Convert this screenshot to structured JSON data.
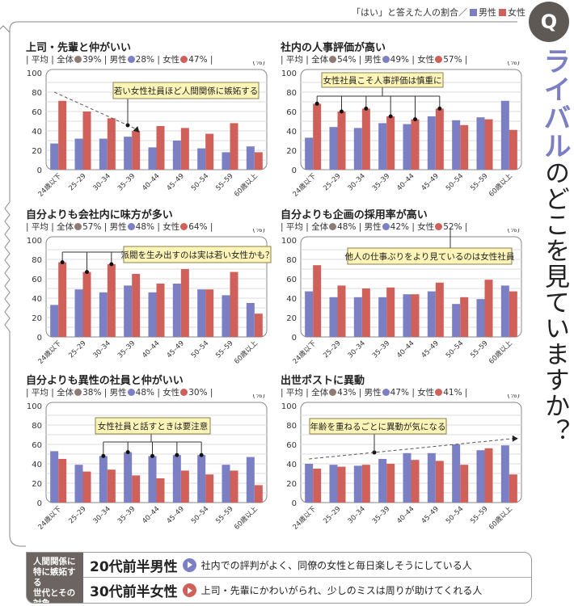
{
  "header": {
    "legend_caption": "「はい」と答えた人の割合／",
    "legend_male": "男性",
    "legend_female": "女性",
    "q_badge": "Q",
    "title_accent": "ライバル",
    "title_rest": "のどこを見ていますか？"
  },
  "colors": {
    "male": "#7b7fc4",
    "female": "#d0605a",
    "overall": "#8e7b76",
    "callout_bg": "#fdf5b8"
  },
  "labels": {
    "avg": "平均",
    "overall": "全体",
    "male": "男性",
    "female": "女性",
    "unit": "(%)"
  },
  "chart_data": [
    {
      "type": "bar",
      "title": "上司・先輩と仲がいい",
      "avg": {
        "overall": "39%",
        "male": "28%",
        "female": "47%"
      },
      "categories": [
        "24歳以下",
        "25–29",
        "30–34",
        "35–39",
        "40–44",
        "45–49",
        "50–54",
        "55–59",
        "60歳以上"
      ],
      "series": [
        {
          "name": "男性",
          "values": [
            27,
            32,
            32,
            34,
            23,
            30,
            22,
            18,
            24
          ]
        },
        {
          "name": "女性",
          "values": [
            71,
            60,
            53,
            40,
            45,
            43,
            37,
            48,
            18
          ]
        }
      ],
      "ylim": [
        0,
        100
      ],
      "yticks": [
        0,
        20,
        40,
        60,
        80,
        100
      ],
      "grid": true,
      "callout": "若い女性社員ほど人間関係に嫉妬する"
    },
    {
      "type": "bar",
      "title": "社内の人事評価が高い",
      "avg": {
        "overall": "54%",
        "male": "49%",
        "female": "57%"
      },
      "categories": [
        "24歳以下",
        "25–29",
        "30–34",
        "35–39",
        "40–44",
        "45–49",
        "50–54",
        "55–59",
        "60歳以上"
      ],
      "series": [
        {
          "name": "男性",
          "values": [
            33,
            44,
            43,
            48,
            47,
            55,
            51,
            54,
            71
          ]
        },
        {
          "name": "女性",
          "values": [
            68,
            60,
            63,
            55,
            52,
            63,
            46,
            52,
            41
          ]
        }
      ],
      "ylim": [
        0,
        100
      ],
      "yticks": [
        0,
        20,
        40,
        60,
        80,
        100
      ],
      "grid": true,
      "callout": "女性社員こそ人事評価は慎重に"
    },
    {
      "type": "bar",
      "title": "自分よりも会社内に味方が多い",
      "avg": {
        "overall": "57%",
        "male": "48%",
        "female": "64%"
      },
      "categories": [
        "24歳以下",
        "25–29",
        "30–34",
        "35–39",
        "40–44",
        "45–49",
        "50–54",
        "55–59",
        "60歳以上"
      ],
      "series": [
        {
          "name": "男性",
          "values": [
            33,
            49,
            46,
            53,
            46,
            55,
            49,
            43,
            35
          ]
        },
        {
          "name": "女性",
          "values": [
            77,
            67,
            75,
            65,
            55,
            70,
            49,
            67,
            24
          ]
        }
      ],
      "ylim": [
        0,
        100
      ],
      "yticks": [
        0,
        20,
        40,
        60,
        80,
        100
      ],
      "grid": true,
      "callout": "派閥を生み出すのは実は若い女性かも？"
    },
    {
      "type": "bar",
      "title": "自分よりも企画の採用率が高い",
      "avg": {
        "overall": "48%",
        "male": "42%",
        "female": "52%"
      },
      "categories": [
        "24歳以下",
        "25–29",
        "30–34",
        "35–39",
        "40–44",
        "45–49",
        "50–54",
        "55–59",
        "60歳以上"
      ],
      "series": [
        {
          "name": "男性",
          "values": [
            47,
            41,
            41,
            41,
            44,
            47,
            34,
            39,
            53
          ]
        },
        {
          "name": "女性",
          "values": [
            74,
            53,
            50,
            51,
            44,
            56,
            41,
            59,
            47
          ]
        }
      ],
      "ylim": [
        0,
        100
      ],
      "yticks": [
        0,
        20,
        40,
        60,
        80,
        100
      ],
      "grid": true,
      "callout": "他人の仕事ぶりをより見ているのは女性社員"
    },
    {
      "type": "bar",
      "title": "自分よりも異性の社員と仲がいい",
      "avg": {
        "overall": "38%",
        "male": "48%",
        "female": "30%"
      },
      "categories": [
        "24歳以下",
        "25–29",
        "30–34",
        "35–39",
        "40–44",
        "45–49",
        "50–54",
        "55–59",
        "60歳以上"
      ],
      "series": [
        {
          "name": "男性",
          "values": [
            53,
            39,
            48,
            52,
            48,
            49,
            49,
            39,
            47
          ]
        },
        {
          "name": "女性",
          "values": [
            45,
            32,
            34,
            28,
            25,
            33,
            29,
            33,
            18
          ]
        }
      ],
      "ylim": [
        0,
        100
      ],
      "yticks": [
        0,
        20,
        40,
        60,
        80,
        100
      ],
      "grid": true,
      "callout": "女性社員と話すときは要注意"
    },
    {
      "type": "bar",
      "title": "出世ポストに異動",
      "avg": {
        "overall": "43%",
        "male": "47%",
        "female": "41%"
      },
      "categories": [
        "24歳以下",
        "25–29",
        "30–34",
        "35–39",
        "40–44",
        "45–49",
        "50–54",
        "55–59",
        "60歳以上"
      ],
      "series": [
        {
          "name": "男性",
          "values": [
            40,
            39,
            38,
            45,
            51,
            51,
            60,
            54,
            59
          ]
        },
        {
          "name": "女性",
          "values": [
            35,
            37,
            39,
            40,
            44,
            43,
            39,
            56,
            29
          ]
        }
      ],
      "ylim": [
        0,
        100
      ],
      "yticks": [
        0,
        20,
        40,
        60,
        80,
        100
      ],
      "grid": true,
      "callout": "年齢を重ねるごとに異動が気になる"
    }
  ],
  "footer": {
    "label": [
      "人間関係に",
      "特に嫉妬する",
      "世代とその対象"
    ],
    "rows": [
      {
        "who": "20代前半男性",
        "icon": "play-circle-blue",
        "desc": "社内での評判がよく、同僚の女性と毎日楽しそうにしている人"
      },
      {
        "who": "30代前半女性",
        "icon": "play-circle-red",
        "desc": "上司・先輩にかわいがられ、少しのミスは周りが助けてくれる人"
      }
    ]
  }
}
